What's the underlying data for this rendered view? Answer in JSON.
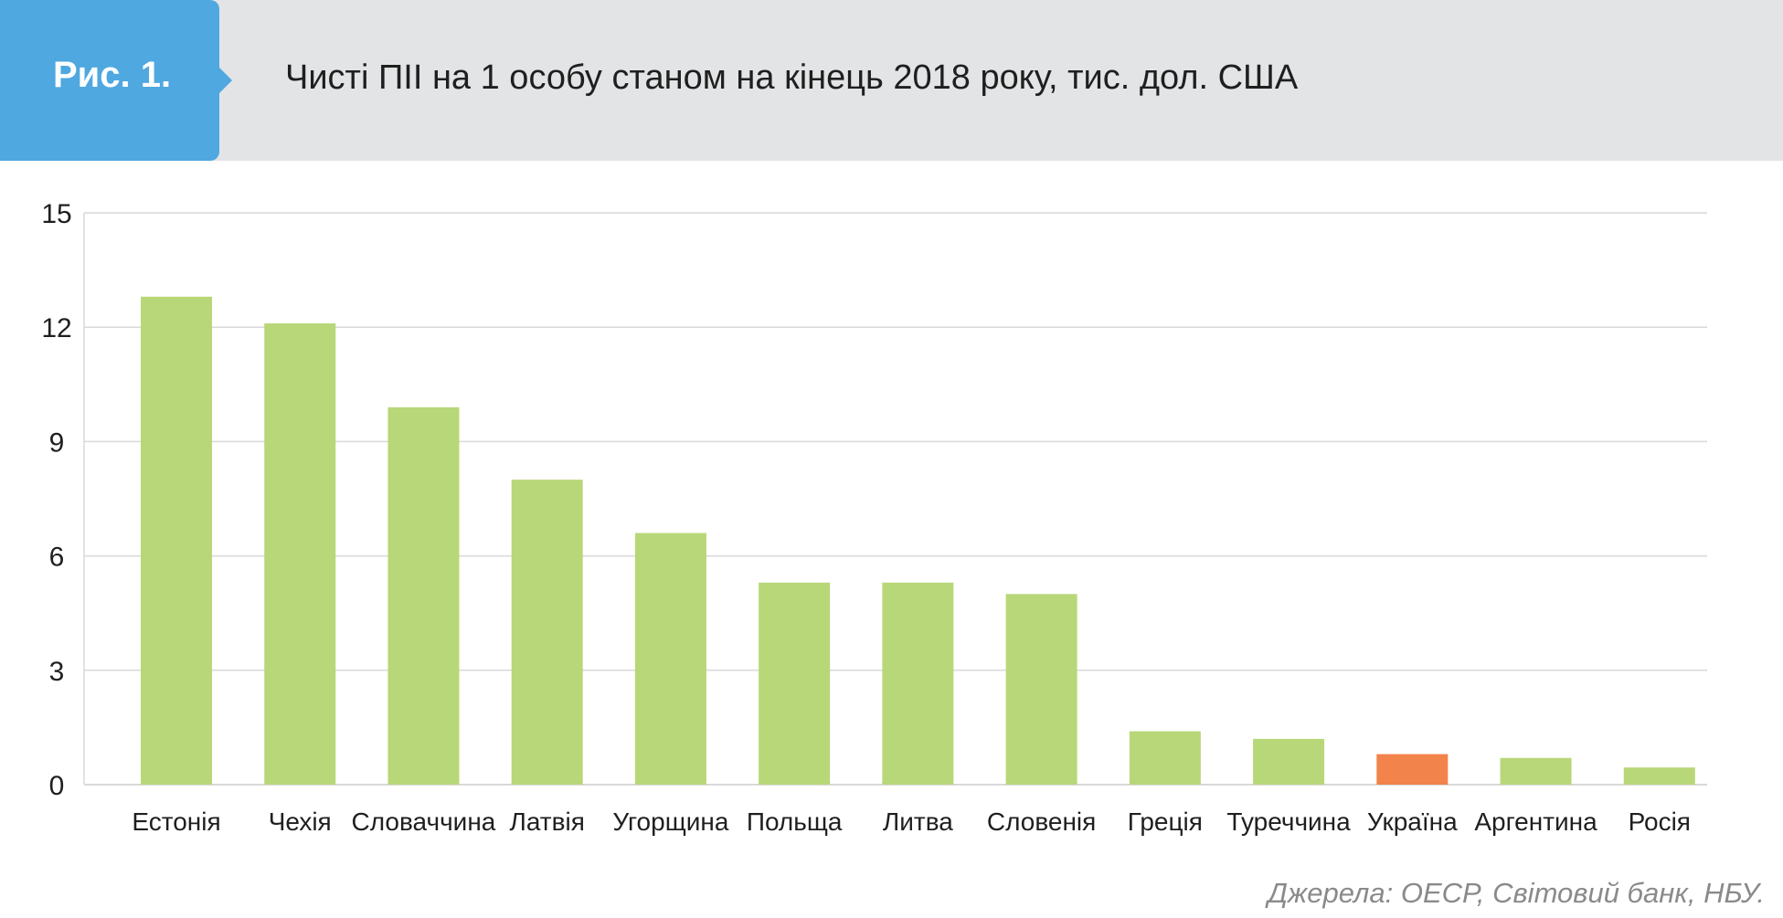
{
  "header": {
    "figure_label": "Рис. 1.",
    "title": "Чисті ПІІ на 1 особу станом на кінець 2018 року, тис. дол. США"
  },
  "source": "Джерела: ОЕСР, Світовий банк, НБУ.",
  "colors": {
    "header_background": "#e3e4e6",
    "figure_tab": "#4fa8df",
    "bar_default": "#b8d778",
    "bar_highlight": "#f2834a",
    "gridline": "#d9d9d9"
  },
  "chart_data": {
    "type": "bar",
    "title": "Чисті ПІІ на 1 особу станом на кінець 2018 року, тис. дол. США",
    "categories": [
      "Естонія",
      "Чехія",
      "Словаччина",
      "Латвія",
      "Угорщина",
      "Польща",
      "Литва",
      "Словенія",
      "Греція",
      "Туреччина",
      "Україна",
      "Аргентина",
      "Росія"
    ],
    "values": [
      12.8,
      12.1,
      9.9,
      8.0,
      6.6,
      5.3,
      5.3,
      5.0,
      1.4,
      1.2,
      0.8,
      0.7,
      0.45
    ],
    "highlight": "Україна",
    "ylim": [
      0,
      15
    ],
    "yticks": [
      0,
      3,
      6,
      9,
      12,
      15
    ],
    "grid": true,
    "legend": "none"
  }
}
